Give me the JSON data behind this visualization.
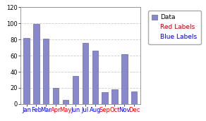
{
  "months": [
    "Jan",
    "Feb",
    "Mar",
    "Apr",
    "May",
    "Jun",
    "Jul",
    "Aug",
    "Sep",
    "Oct",
    "Nov",
    "Dec"
  ],
  "values": [
    82,
    99,
    81,
    20,
    5,
    35,
    76,
    66,
    15,
    18,
    62,
    16
  ],
  "label_colors": [
    "blue",
    "blue",
    "blue",
    "red",
    "red",
    "blue",
    "blue",
    "blue",
    "red",
    "red",
    "blue",
    "red"
  ],
  "bar_color": "#8888cc",
  "bar_edgecolor": "#6666aa",
  "ylim": [
    0,
    120
  ],
  "yticks": [
    0,
    20,
    40,
    60,
    80,
    100,
    120
  ],
  "background_color": "#ffffff",
  "plot_bg": "#ffffff",
  "legend_labels": [
    "Data",
    "Red Labels",
    "Blue Labels"
  ],
  "legend_text_colors": [
    "#000000",
    "#cc0000",
    "#0000cc"
  ],
  "grid_color": "#cccccc",
  "tick_fontsize": 6.0,
  "legend_fontsize": 6.5,
  "fig_width": 2.92,
  "fig_height": 1.72,
  "dpi": 100
}
